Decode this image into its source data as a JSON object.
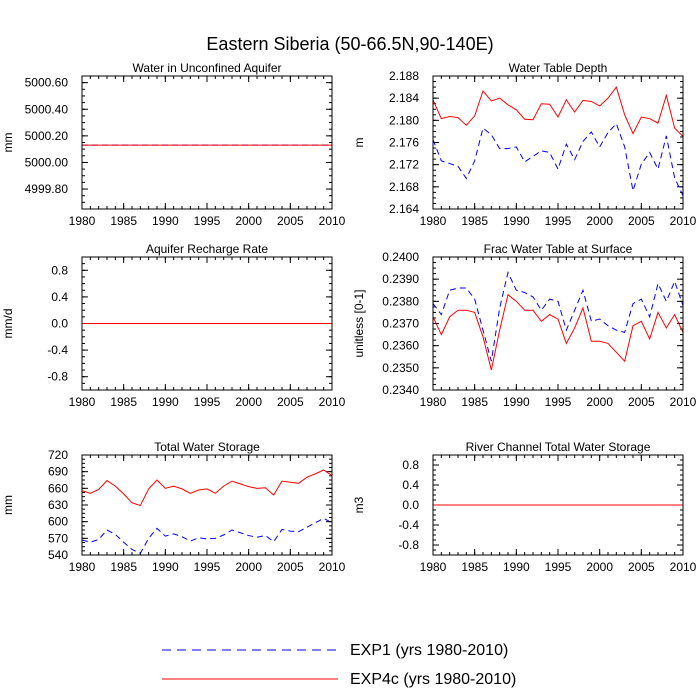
{
  "figure_title": "Eastern Siberia (50-66.5N,90-140E)",
  "legend": [
    {
      "label": "EXP1 (yrs 1980-2010)",
      "color": "#0000ff",
      "dash": "dashed"
    },
    {
      "label": "EXP4c (yrs 1980-2010)",
      "color": "#ff0000",
      "dash": "solid"
    }
  ],
  "chart_data": [
    {
      "type": "line",
      "title": "Water in Unconfined Aquifer",
      "xlabel": "",
      "ylabel": "mm",
      "xlim": [
        1980,
        2010
      ],
      "ylim": [
        4999.65,
        5000.65
      ],
      "xticks": [
        1980,
        1985,
        1990,
        1995,
        2000,
        2005,
        2010
      ],
      "yticks": [
        4999.8,
        5000.0,
        5000.2,
        5000.4,
        5000.6
      ],
      "ytick_labels": [
        "4999.80",
        "5000.00",
        "5000.20",
        "5000.40",
        "5000.60"
      ],
      "x": [
        1980,
        2010
      ],
      "series": [
        {
          "name": "EXP1 (yrs 1980-2010)",
          "values": [
            5000.13,
            5000.13
          ]
        },
        {
          "name": "EXP4c (yrs 1980-2010)",
          "values": [
            5000.13,
            5000.13
          ]
        }
      ]
    },
    {
      "type": "line",
      "title": "Water Table Depth",
      "xlabel": "",
      "ylabel": "m",
      "xlim": [
        1980,
        2010
      ],
      "ylim": [
        2.164,
        2.188
      ],
      "xticks": [
        1980,
        1985,
        1990,
        1995,
        2000,
        2005,
        2010
      ],
      "yticks": [
        2.164,
        2.168,
        2.172,
        2.176,
        2.18,
        2.184,
        2.188
      ],
      "ytick_labels": [
        "2.164",
        "2.168",
        "2.172",
        "2.176",
        "2.180",
        "2.184",
        "2.188"
      ],
      "x": [
        1980,
        1981,
        1982,
        1983,
        1984,
        1985,
        1986,
        1987,
        1988,
        1989,
        1990,
        1991,
        1992,
        1993,
        1994,
        1995,
        1996,
        1997,
        1998,
        1999,
        2000,
        2001,
        2002,
        2003,
        2004,
        2005,
        2006,
        2007,
        2008,
        2009,
        2010
      ],
      "series": [
        {
          "name": "EXP1 (yrs 1980-2010)",
          "values": [
            2.1765,
            2.1727,
            2.1722,
            2.1717,
            2.1695,
            2.1727,
            2.1786,
            2.1774,
            2.1749,
            2.1749,
            2.1752,
            2.1725,
            2.1735,
            2.1745,
            2.1742,
            2.1712,
            2.1757,
            2.1729,
            2.1762,
            2.1779,
            2.1752,
            2.1778,
            2.1794,
            2.1752,
            2.1673,
            2.1721,
            2.1742,
            2.1712,
            2.1772,
            2.1696,
            2.1664
          ]
        },
        {
          "name": "EXP4c (yrs 1980-2010)",
          "values": [
            2.1837,
            2.1803,
            2.1807,
            2.1805,
            2.1791,
            2.1808,
            2.1853,
            2.1835,
            2.184,
            2.1828,
            2.1819,
            2.1802,
            2.1801,
            2.183,
            2.1829,
            2.1806,
            2.1837,
            2.1815,
            2.1836,
            2.1834,
            2.1826,
            2.184,
            2.186,
            2.181,
            2.1776,
            2.1806,
            2.1803,
            2.1795,
            2.1845,
            2.1786,
            2.1771
          ]
        }
      ]
    },
    {
      "type": "line",
      "title": "Aquifer Recharge Rate",
      "xlabel": "",
      "ylabel": "mm/d",
      "xlim": [
        1980,
        2010
      ],
      "ylim": [
        -1,
        1
      ],
      "xticks": [
        1980,
        1985,
        1990,
        1995,
        2000,
        2005,
        2010
      ],
      "yticks": [
        -0.8,
        -0.4,
        0.0,
        0.4,
        0.8
      ],
      "ytick_labels": [
        "-0.8",
        "-0.4",
        "0.0",
        "0.4",
        "0.8"
      ],
      "x": [
        1980,
        2010
      ],
      "series": [
        {
          "name": "EXP1 (yrs 1980-2010)",
          "values": [
            0,
            0
          ]
        },
        {
          "name": "EXP4c (yrs 1980-2010)",
          "values": [
            0,
            0
          ]
        }
      ]
    },
    {
      "type": "line",
      "title": "Frac Water Table at Surface",
      "xlabel": "",
      "ylabel": "unitless [0-1]",
      "xlim": [
        1980,
        2010
      ],
      "ylim": [
        0.234,
        0.24
      ],
      "xticks": [
        1980,
        1985,
        1990,
        1995,
        2000,
        2005,
        2010
      ],
      "yticks": [
        0.234,
        0.235,
        0.236,
        0.237,
        0.238,
        0.239,
        0.24
      ],
      "ytick_labels": [
        "0.2340",
        "0.2350",
        "0.2360",
        "0.2370",
        "0.2380",
        "0.2390",
        "0.2400"
      ],
      "x": [
        1980,
        1981,
        1982,
        1983,
        1984,
        1985,
        1986,
        1987,
        1988,
        1989,
        1990,
        1991,
        1992,
        1993,
        1994,
        1995,
        1996,
        1997,
        1998,
        1999,
        2000,
        2001,
        2002,
        2003,
        2004,
        2005,
        2006,
        2007,
        2008,
        2009,
        2010
      ],
      "series": [
        {
          "name": "EXP1 (yrs 1980-2010)",
          "values": [
            0.2379,
            0.2374,
            0.2385,
            0.2386,
            0.2386,
            0.2381,
            0.2367,
            0.2353,
            0.2377,
            0.2393,
            0.2385,
            0.2384,
            0.2382,
            0.2376,
            0.2381,
            0.238,
            0.2367,
            0.2376,
            0.2385,
            0.2371,
            0.2372,
            0.2369,
            0.2367,
            0.2366,
            0.2379,
            0.2381,
            0.2373,
            0.2388,
            0.238,
            0.2389,
            0.2378
          ]
        },
        {
          "name": "EXP4c (yrs 1980-2010)",
          "values": [
            0.2373,
            0.2365,
            0.2373,
            0.2376,
            0.2376,
            0.2375,
            0.2364,
            0.2349,
            0.2367,
            0.2383,
            0.238,
            0.2376,
            0.2376,
            0.2371,
            0.2374,
            0.2372,
            0.2361,
            0.2368,
            0.2377,
            0.2362,
            0.2362,
            0.2361,
            0.2357,
            0.2353,
            0.2369,
            0.2371,
            0.2363,
            0.2375,
            0.2368,
            0.2374,
            0.2366
          ]
        }
      ]
    },
    {
      "type": "line",
      "title": "Total Water Storage",
      "xlabel": "",
      "ylabel": "mm",
      "xlim": [
        1980,
        2010
      ],
      "ylim": [
        540,
        720
      ],
      "xticks": [
        1980,
        1985,
        1990,
        1995,
        2000,
        2005,
        2010
      ],
      "yticks": [
        540,
        570,
        600,
        630,
        660,
        690,
        720
      ],
      "ytick_labels": [
        "540",
        "570",
        "600",
        "630",
        "660",
        "690",
        "720"
      ],
      "x": [
        1980,
        1981,
        1982,
        1983,
        1984,
        1985,
        1986,
        1987,
        1988,
        1989,
        1990,
        1991,
        1992,
        1993,
        1994,
        1995,
        1996,
        1997,
        1998,
        1999,
        2000,
        2001,
        2002,
        2003,
        2004,
        2005,
        2006,
        2007,
        2008,
        2009,
        2010
      ],
      "series": [
        {
          "name": "EXP1 (yrs 1980-2010)",
          "values": [
            567,
            563,
            568,
            585,
            577,
            563,
            550,
            543,
            570,
            588,
            574,
            578,
            573,
            565,
            571,
            569,
            570,
            576,
            585,
            580,
            575,
            572,
            575,
            564,
            586,
            583,
            582,
            590,
            598,
            606,
            598
          ]
        },
        {
          "name": "EXP4c (yrs 1980-2010)",
          "values": [
            656,
            651,
            658,
            674,
            664,
            650,
            634,
            629,
            659,
            675,
            660,
            664,
            659,
            651,
            657,
            659,
            651,
            664,
            673,
            668,
            663,
            660,
            661,
            648,
            673,
            671,
            669,
            680,
            686,
            693,
            683
          ]
        }
      ]
    },
    {
      "type": "line",
      "title": "River Channel Total Water Storage",
      "xlabel": "",
      "ylabel": "m3",
      "xlim": [
        1980,
        2010
      ],
      "ylim": [
        -1,
        1
      ],
      "xticks": [
        1980,
        1985,
        1990,
        1995,
        2000,
        2005,
        2010
      ],
      "yticks": [
        -0.8,
        -0.4,
        0.0,
        0.4,
        0.8
      ],
      "ytick_labels": [
        "-0.8",
        "-0.4",
        "0.0",
        "0.4",
        "0.8"
      ],
      "x": [
        1980,
        2010
      ],
      "series": [
        {
          "name": "EXP1 (yrs 1980-2010)",
          "values": [
            0,
            0
          ]
        },
        {
          "name": "EXP4c (yrs 1980-2010)",
          "values": [
            0,
            0
          ]
        }
      ]
    }
  ]
}
